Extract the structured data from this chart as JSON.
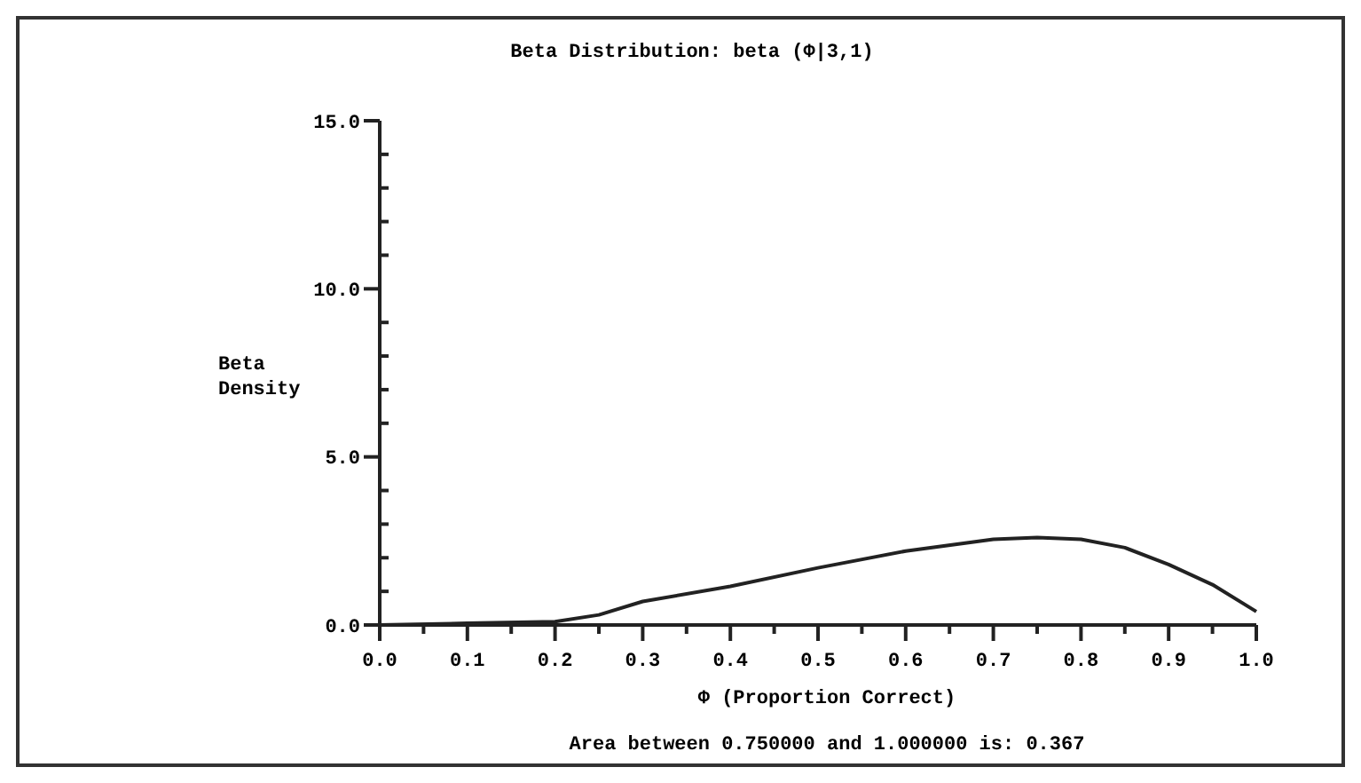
{
  "chart_data": {
    "type": "line",
    "title": "Beta Distribution:  beta (Φ|3,1)",
    "xlabel": "Φ (Proportion Correct)",
    "ylabel": "Beta\nDensity",
    "annotations": [
      "Area between 0.750000 and 1.000000 is:  0.367"
    ],
    "x": [
      0,
      0.1,
      0.2,
      0.25,
      0.3,
      0.4,
      0.5,
      0.6,
      0.7,
      0.75,
      0.8,
      0.85,
      0.9,
      0.95,
      1.0
    ],
    "series": [
      {
        "color": "#222222",
        "values": [
          0,
          0.05,
          0.1,
          0.3,
          0.7,
          1.15,
          1.7,
          2.2,
          2.55,
          2.6,
          2.55,
          2.3,
          1.8,
          1.2,
          0.4
        ]
      }
    ],
    "xlim": [
      0,
      1
    ],
    "ylim": [
      0,
      15
    ],
    "xticks": [
      {
        "value": 0,
        "label": "0.0"
      },
      {
        "value": 0.05,
        "label": null
      },
      {
        "value": 0.1,
        "label": "0.1"
      },
      {
        "value": 0.15,
        "label": null
      },
      {
        "value": 0.2,
        "label": "0.2"
      },
      {
        "value": 0.25,
        "label": null
      },
      {
        "value": 0.3,
        "label": "0.3"
      },
      {
        "value": 0.35,
        "label": null
      },
      {
        "value": 0.4,
        "label": "0.4"
      },
      {
        "value": 0.45,
        "label": null
      },
      {
        "value": 0.5,
        "label": "0.5"
      },
      {
        "value": 0.55,
        "label": null
      },
      {
        "value": 0.6,
        "label": "0.6"
      },
      {
        "value": 0.65,
        "label": null
      },
      {
        "value": 0.7,
        "label": "0.7"
      },
      {
        "value": 0.75,
        "label": null
      },
      {
        "value": 0.8,
        "label": "0.8"
      },
      {
        "value": 0.85,
        "label": null
      },
      {
        "value": 0.9,
        "label": "0.9"
      },
      {
        "value": 0.95,
        "label": null
      },
      {
        "value": 1,
        "label": "1.0"
      }
    ],
    "yticks": [
      {
        "value": 0,
        "label": "0.0"
      },
      {
        "value": 1,
        "label": null
      },
      {
        "value": 2,
        "label": null
      },
      {
        "value": 3,
        "label": null
      },
      {
        "value": 4,
        "label": null
      },
      {
        "value": 5,
        "label": "5.0"
      },
      {
        "value": 6,
        "label": null
      },
      {
        "value": 7,
        "label": null
      },
      {
        "value": 8,
        "label": null
      },
      {
        "value": 9,
        "label": null
      },
      {
        "value": 10,
        "label": "10.0"
      },
      {
        "value": 11,
        "label": null
      },
      {
        "value": 12,
        "label": null
      },
      {
        "value": 13,
        "label": null
      },
      {
        "value": 14,
        "label": null
      },
      {
        "value": 15,
        "label": "15.0"
      }
    ],
    "grid": false,
    "marker": "none",
    "line_style": "solid"
  }
}
